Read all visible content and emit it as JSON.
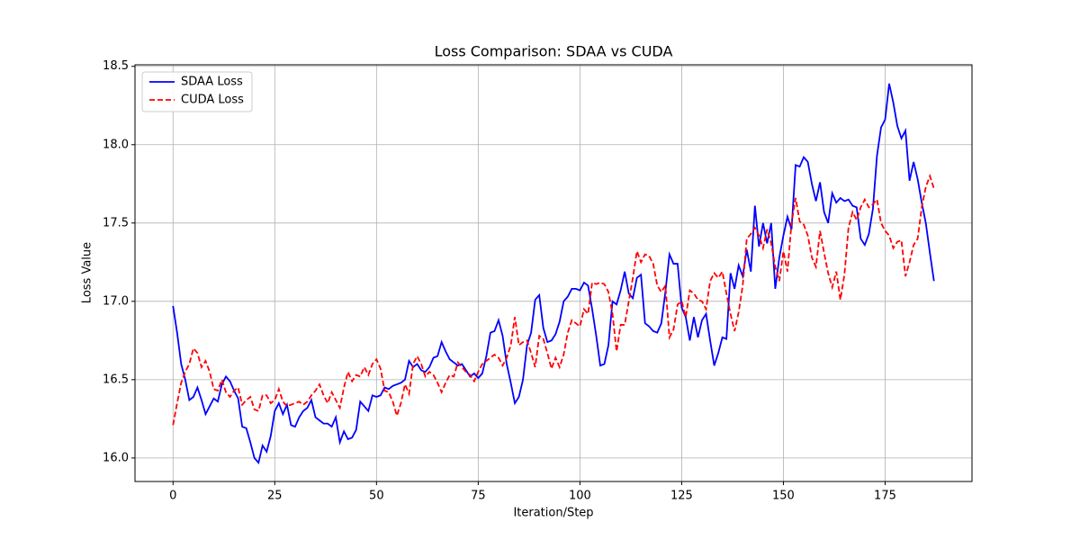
{
  "chart_data": {
    "type": "line",
    "title": "Loss Comparison: SDAA vs CUDA",
    "xlabel": "Iteration/Step",
    "ylabel": "Loss Value",
    "x": [
      0,
      1,
      2,
      3,
      4,
      5,
      6,
      7,
      8,
      9,
      10,
      11,
      12,
      13,
      14,
      15,
      16,
      17,
      18,
      19,
      20,
      21,
      22,
      23,
      24,
      25,
      26,
      27,
      28,
      29,
      30,
      31,
      32,
      33,
      34,
      35,
      36,
      37,
      38,
      39,
      40,
      41,
      42,
      43,
      44,
      45,
      46,
      47,
      48,
      49,
      50,
      51,
      52,
      53,
      54,
      55,
      56,
      57,
      58,
      59,
      60,
      61,
      62,
      63,
      64,
      65,
      66,
      67,
      68,
      69,
      70,
      71,
      72,
      73,
      74,
      75,
      76,
      77,
      78,
      79,
      80,
      81,
      82,
      83,
      84,
      85,
      86,
      87,
      88,
      89,
      90,
      91,
      92,
      93,
      94,
      95,
      96,
      97,
      98,
      99,
      100,
      101,
      102,
      103,
      104,
      105,
      106,
      107,
      108,
      109,
      110,
      111,
      112,
      113,
      114,
      115,
      116,
      117,
      118,
      119,
      120,
      121,
      122,
      123,
      124,
      125,
      126,
      127,
      128,
      129,
      130,
      131,
      132,
      133,
      134,
      135,
      136,
      137,
      138,
      139,
      140,
      141,
      142,
      143,
      144,
      145,
      146,
      147,
      148,
      149,
      150,
      151,
      152,
      153,
      154,
      155,
      156,
      157,
      158,
      159,
      160,
      161,
      162,
      163,
      164,
      165,
      166,
      167,
      168,
      169,
      170,
      171,
      172,
      173,
      174,
      175,
      176,
      177,
      178,
      179,
      180,
      181,
      182,
      183,
      184,
      185,
      186,
      187
    ],
    "series": [
      {
        "name": "SDAA Loss",
        "color": "#0000ff",
        "dash": false,
        "values": [
          16.97,
          16.8,
          16.6,
          16.5,
          16.37,
          16.39,
          16.45,
          16.37,
          16.28,
          16.33,
          16.38,
          16.36,
          16.47,
          16.52,
          16.49,
          16.43,
          16.38,
          16.2,
          16.19,
          16.1,
          16.0,
          15.97,
          16.08,
          16.04,
          16.14,
          16.3,
          16.35,
          16.28,
          16.34,
          16.21,
          16.2,
          16.26,
          16.3,
          16.32,
          16.37,
          16.26,
          16.24,
          16.22,
          16.22,
          16.2,
          16.26,
          16.1,
          16.17,
          16.12,
          16.13,
          16.18,
          16.36,
          16.33,
          16.3,
          16.4,
          16.39,
          16.4,
          16.45,
          16.44,
          16.46,
          16.47,
          16.48,
          16.5,
          16.62,
          16.58,
          16.6,
          16.56,
          16.55,
          16.58,
          16.64,
          16.65,
          16.74,
          16.68,
          16.63,
          16.61,
          16.59,
          16.6,
          16.56,
          16.52,
          16.54,
          16.51,
          16.54,
          16.65,
          16.8,
          16.81,
          16.88,
          16.78,
          16.6,
          16.48,
          16.35,
          16.39,
          16.5,
          16.72,
          16.8,
          17.01,
          17.04,
          16.83,
          16.74,
          16.75,
          16.79,
          16.87,
          17.0,
          17.03,
          17.08,
          17.08,
          17.07,
          17.12,
          17.1,
          16.95,
          16.78,
          16.59,
          16.6,
          16.72,
          17.0,
          16.98,
          17.07,
          17.19,
          17.05,
          17.02,
          17.15,
          17.17,
          16.86,
          16.84,
          16.81,
          16.8,
          16.86,
          17.06,
          17.3,
          17.24,
          17.24,
          16.96,
          16.9,
          16.75,
          16.9,
          16.77,
          16.88,
          16.92,
          16.75,
          16.59,
          16.67,
          16.77,
          16.76,
          17.18,
          17.08,
          17.23,
          17.16,
          17.33,
          17.19,
          17.61,
          17.35,
          17.5,
          17.37,
          17.5,
          17.08,
          17.28,
          17.42,
          17.54,
          17.46,
          17.87,
          17.86,
          17.92,
          17.89,
          17.75,
          17.64,
          17.76,
          17.57,
          17.5,
          17.69,
          17.63,
          17.66,
          17.64,
          17.65,
          17.61,
          17.6,
          17.4,
          17.36,
          17.43,
          17.59,
          17.93,
          18.11,
          18.16,
          18.39,
          18.27,
          18.12,
          18.04,
          18.09,
          17.77,
          17.89,
          17.78,
          17.63,
          17.5,
          17.31,
          17.13
        ]
      },
      {
        "name": "CUDA Loss",
        "color": "#ff0000",
        "dash": true,
        "values": [
          16.21,
          16.35,
          16.48,
          16.55,
          16.6,
          16.7,
          16.67,
          16.58,
          16.62,
          16.55,
          16.44,
          16.43,
          16.5,
          16.42,
          16.39,
          16.43,
          16.45,
          16.34,
          16.37,
          16.39,
          16.31,
          16.3,
          16.4,
          16.4,
          16.35,
          16.37,
          16.44,
          16.36,
          16.33,
          16.34,
          16.35,
          16.36,
          16.34,
          16.36,
          16.4,
          16.43,
          16.47,
          16.4,
          16.35,
          16.42,
          16.37,
          16.32,
          16.45,
          16.55,
          16.49,
          16.53,
          16.52,
          16.58,
          16.53,
          16.6,
          16.63,
          16.57,
          16.43,
          16.42,
          16.36,
          16.27,
          16.35,
          16.47,
          16.41,
          16.6,
          16.65,
          16.6,
          16.52,
          16.55,
          16.53,
          16.48,
          16.42,
          16.48,
          16.53,
          16.52,
          16.61,
          16.58,
          16.55,
          16.53,
          16.49,
          16.55,
          16.6,
          16.62,
          16.64,
          16.66,
          16.64,
          16.59,
          16.64,
          16.72,
          16.9,
          16.72,
          16.74,
          16.75,
          16.67,
          16.58,
          16.78,
          16.76,
          16.67,
          16.57,
          16.64,
          16.58,
          16.66,
          16.8,
          16.88,
          16.86,
          16.84,
          16.95,
          16.92,
          17.12,
          17.11,
          17.12,
          17.11,
          17.06,
          16.92,
          16.68,
          16.85,
          16.85,
          17.0,
          17.15,
          17.32,
          17.25,
          17.3,
          17.29,
          17.24,
          17.1,
          17.06,
          17.1,
          16.77,
          16.82,
          16.98,
          17.0,
          16.9,
          17.07,
          17.05,
          17.01,
          17.0,
          16.95,
          17.13,
          17.18,
          17.15,
          17.19,
          17.05,
          16.92,
          16.81,
          16.93,
          17.1,
          17.4,
          17.43,
          17.47,
          17.42,
          17.34,
          17.46,
          17.37,
          17.22,
          17.13,
          17.32,
          17.19,
          17.5,
          17.66,
          17.51,
          17.49,
          17.42,
          17.28,
          17.22,
          17.45,
          17.31,
          17.18,
          17.09,
          17.19,
          17.01,
          17.17,
          17.47,
          17.57,
          17.52,
          17.6,
          17.65,
          17.6,
          17.62,
          17.65,
          17.5,
          17.45,
          17.42,
          17.34,
          17.38,
          17.39,
          17.16,
          17.25,
          17.36,
          17.4,
          17.6,
          17.73,
          17.8,
          17.72
        ]
      }
    ],
    "xlim": [
      -9.35,
      196.35
    ],
    "ylim": [
      15.85,
      18.51
    ],
    "xticks": [
      0,
      25,
      50,
      75,
      100,
      125,
      150,
      175
    ],
    "yticks": [
      {
        "value": 16,
        "label": "16.0"
      },
      16.5,
      {
        "value": 17,
        "label": "17.0"
      },
      17.5,
      {
        "value": 18,
        "label": "18.0"
      },
      18.5
    ],
    "grid": true,
    "legend": "upper-left"
  }
}
